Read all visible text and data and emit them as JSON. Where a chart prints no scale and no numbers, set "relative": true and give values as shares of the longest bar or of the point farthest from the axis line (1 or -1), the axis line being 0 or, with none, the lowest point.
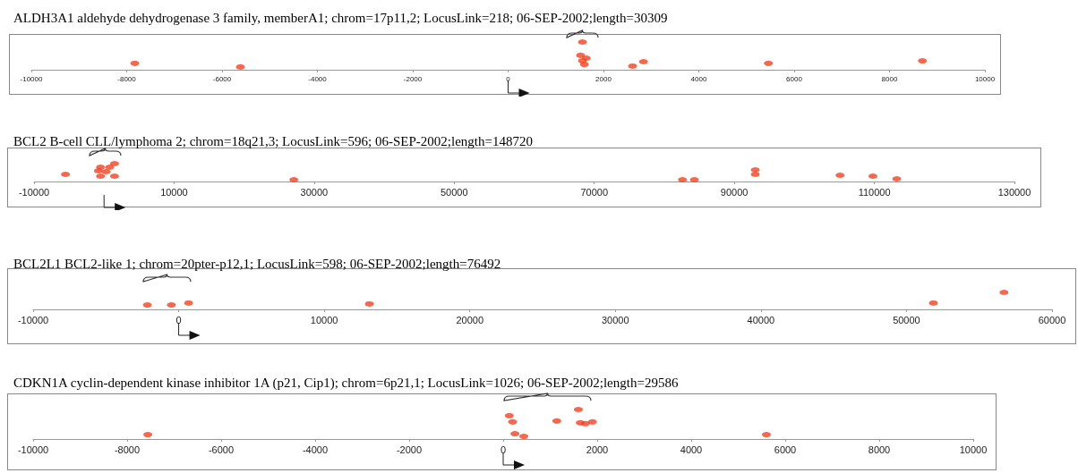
{
  "chart_data": [
    {
      "type": "scatter",
      "title": "ALDH3A1 aldehyde dehydrogenase 3 family, memberA1; chrom=17p11,2; LocusLink=218; 06-SEP-2002;length=30309",
      "relative": true,
      "marker": "circle",
      "xlim": [
        -10000,
        10000
      ],
      "xticks": [
        -10000,
        -8000,
        -6000,
        -4000,
        -2000,
        0,
        2000,
        4000,
        6000,
        8000,
        10000
      ],
      "series": [
        {
          "color": "#f04424",
          "x": [
            -7830,
            -5615,
            1520,
            1640,
            1560,
            1600,
            1560,
            2610,
            2840,
            5460,
            8690
          ],
          "values": [
            0.23,
            0.1,
            0.52,
            0.42,
            0.32,
            0.19,
            1,
            0.13,
            0.29,
            0.23,
            0.32
          ]
        }
      ]
    },
    {
      "type": "scatter",
      "title": "BCL2 B-cell CLL/lymphoma 2; chrom=18q21,3; LocusLink=596; 06-SEP-2002;length=148720",
      "relative": true,
      "marker": "circle",
      "xlim": [
        -10000,
        130000
      ],
      "xticks": [
        -10000,
        10000,
        30000,
        50000,
        70000,
        90000,
        110000,
        130000
      ],
      "series": [
        {
          "color": "#f04424",
          "x": [
            -5500,
            -800,
            300,
            -500,
            800,
            -500,
            1500,
            1500,
            27100,
            82600,
            84300,
            93000,
            93000,
            105100,
            109800,
            113200
          ],
          "values": [
            0.4,
            0.6,
            0.55,
            0.8,
            0.8,
            0.3,
            0.3,
            1,
            0.1,
            0.1,
            0.1,
            0.65,
            0.4,
            0.35,
            0.3,
            0.15
          ]
        }
      ]
    },
    {
      "type": "scatter",
      "title": "BCL2L1 BCL2-like 1; chrom=20pter-p12,1; LocusLink=598; 06-SEP-2002;length=76492",
      "relative": true,
      "marker": "circle",
      "xlim": [
        -10000,
        60000
      ],
      "xticks": [
        -10000,
        0,
        10000,
        20000,
        30000,
        40000,
        50000,
        60000
      ],
      "series": [
        {
          "color": "#f04424",
          "x": [
            -2150,
            -500,
            680,
            13100,
            51850,
            56700
          ],
          "values": [
            0.26,
            0.26,
            0.37,
            0.32,
            0.37,
            1
          ]
        }
      ]
    },
    {
      "type": "scatter",
      "title": "CDKN1A cyclin-dependent kinase inhibitor 1A (p21, Cip1); chrom=6p21,1; LocusLink=1026; 06-SEP-2002;length=29586",
      "relative": true,
      "marker": "circle",
      "xlim": [
        -10000,
        10000
      ],
      "xticks": [
        -10000,
        -8000,
        -6000,
        -4000,
        -2000,
        0,
        2000,
        4000,
        6000,
        8000,
        10000
      ],
      "series": [
        {
          "color": "#f04424",
          "x": [
            -7560,
            130,
            200,
            250,
            440,
            1140,
            1600,
            1640,
            1750,
            1900,
            5600
          ],
          "values": [
            0.15,
            0.79,
            0.58,
            0.18,
            0.09,
            0.61,
            1,
            0.55,
            0.52,
            0.58,
            0.15
          ]
        }
      ]
    }
  ]
}
